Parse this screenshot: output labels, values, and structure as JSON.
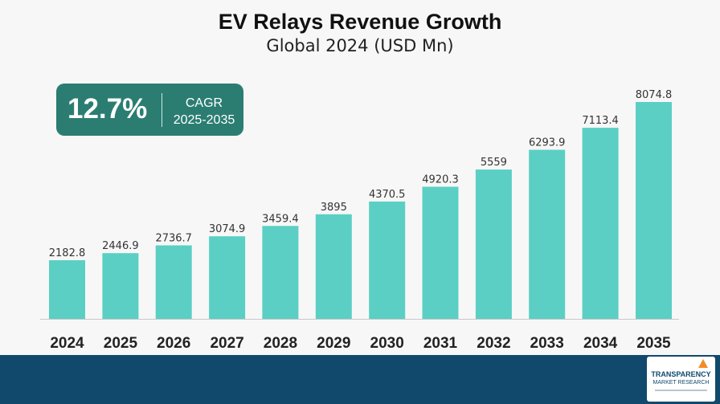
{
  "chart_data": {
    "type": "bar",
    "title": "EV Relays Revenue Growth",
    "subtitle": "Global 2024 (USD Mn)",
    "categories": [
      "2024",
      "2025",
      "2026",
      "2027",
      "2028",
      "2029",
      "2030",
      "2031",
      "2032",
      "2033",
      "2034",
      "2035"
    ],
    "values": [
      2182.8,
      2446.9,
      2736.7,
      3074.9,
      3459.4,
      3895,
      4370.5,
      4920.3,
      5559,
      6293.9,
      7113.4,
      8074.8
    ],
    "value_labels": [
      "2182.8",
      "2446.9",
      "2736.7",
      "3074.9",
      "3459.4",
      "3895",
      "4370.5",
      "4920.3",
      "5559",
      "6293.9",
      "7113.4",
      "8074.8"
    ],
    "xlabel": "",
    "ylabel": "",
    "ylim": [
      0,
      8074.8
    ],
    "grid": false,
    "bar_color": "#5bcfc4"
  },
  "cagr": {
    "value": "12.7%",
    "label": "CAGR",
    "period": "2025-2035"
  },
  "brand": {
    "name_line1": "TRANSPARENCY",
    "name_line2": "MARKET RESEARCH",
    "footer_color": "#11496c",
    "accent_color": "#2b7d72"
  }
}
